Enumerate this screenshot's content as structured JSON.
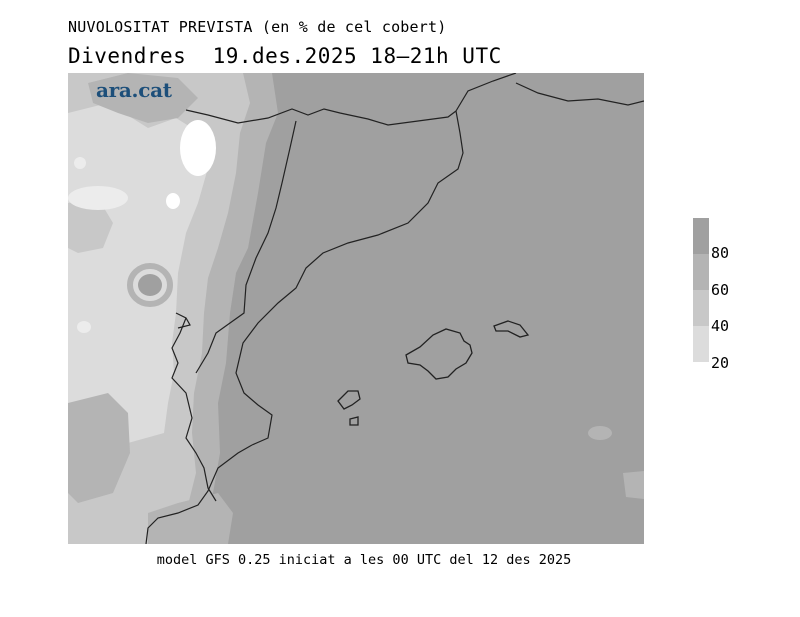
{
  "header": {
    "title": "NUVOLOSITAT PREVISTA (en % de cel cobert)",
    "day": "Divendres",
    "date_time": "19.des.2025 18–21h UTC"
  },
  "map": {
    "logo_text": "ara.cat",
    "logo_color": "#1d4f7a",
    "region": "Catalonia, Balearic Islands and western Mediterranean",
    "sea_cloud_cover_band": "80-100"
  },
  "legend": {
    "labels": [
      "80",
      "60",
      "40",
      "20"
    ],
    "band_colors": [
      "#a0a0a0",
      "#b4b4b4",
      "#c8c8c8",
      "#dcdcdc"
    ]
  },
  "footer": {
    "caption": "model GFS 0.25 iniciat a les 00 UTC del 12 des 2025"
  }
}
